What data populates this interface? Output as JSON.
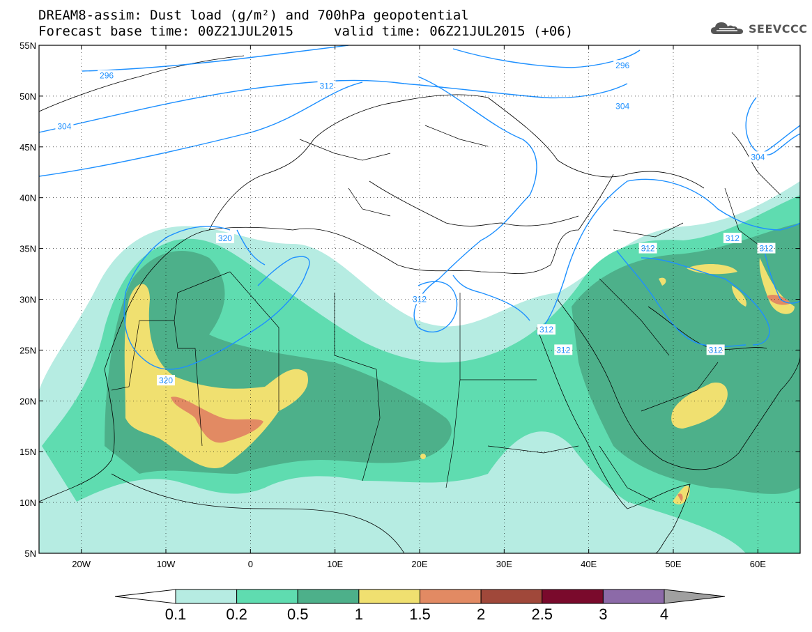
{
  "header": {
    "line1": "DREAM8-assim: Dust load (g/m²) and 700hPa geopotential",
    "line2": "Forecast base time: 00Z21JUL2015",
    "valid": "valid time: 06Z21JUL2015 (+06)",
    "logo_text": "SEEVCCC",
    "logo_icon": "cloud-icon"
  },
  "map": {
    "lon_range": [
      -25,
      65
    ],
    "lat_range": [
      5,
      55
    ],
    "x_ticks": [
      {
        "lon": -20,
        "label": "20W"
      },
      {
        "lon": -10,
        "label": "10W"
      },
      {
        "lon": 0,
        "label": "0"
      },
      {
        "lon": 10,
        "label": "10E"
      },
      {
        "lon": 20,
        "label": "20E"
      },
      {
        "lon": 30,
        "label": "30E"
      },
      {
        "lon": 40,
        "label": "40E"
      },
      {
        "lon": 50,
        "label": "50E"
      },
      {
        "lon": 60,
        "label": "60E"
      }
    ],
    "y_ticks": [
      {
        "lat": 55,
        "label": "55N"
      },
      {
        "lat": 50,
        "label": "50N"
      },
      {
        "lat": 45,
        "label": "45N"
      },
      {
        "lat": 40,
        "label": "40N"
      },
      {
        "lat": 35,
        "label": "35N"
      },
      {
        "lat": 30,
        "label": "30N"
      },
      {
        "lat": 25,
        "label": "25N"
      },
      {
        "lat": 20,
        "label": "20N"
      },
      {
        "lat": 15,
        "label": "15N"
      },
      {
        "lat": 10,
        "label": "10N"
      },
      {
        "lat": 5,
        "label": "5N"
      }
    ],
    "grid": "dotted",
    "dust_colors": {
      "0.1-0.2": "#b6ece2",
      "0.2-0.5": "#5fdcb0",
      "0.5-1": "#4db08a",
      "1-1.5": "#f0e070",
      "1.5-2": "#e28a63",
      "2-2.5": "#a0483a"
    },
    "contour_color": "#1e90ff",
    "contour_labels": [
      {
        "value": "296",
        "lon": -17,
        "lat": 52
      },
      {
        "value": "296",
        "lon": 44,
        "lat": 53
      },
      {
        "value": "304",
        "lon": -22,
        "lat": 47
      },
      {
        "value": "304",
        "lon": 44,
        "lat": 49
      },
      {
        "value": "304",
        "lon": 60,
        "lat": 44
      },
      {
        "value": "312",
        "lon": 9,
        "lat": 51
      },
      {
        "value": "312",
        "lon": 20,
        "lat": 30
      },
      {
        "value": "312",
        "lon": 35,
        "lat": 27
      },
      {
        "value": "312",
        "lon": 37,
        "lat": 25
      },
      {
        "value": "312",
        "lon": 47,
        "lat": 35
      },
      {
        "value": "312",
        "lon": 57,
        "lat": 36
      },
      {
        "value": "312",
        "lon": 61,
        "lat": 35
      },
      {
        "value": "312",
        "lon": 55,
        "lat": 25
      },
      {
        "value": "320",
        "lon": -3,
        "lat": 36
      },
      {
        "value": "320",
        "lon": -10,
        "lat": 22
      }
    ]
  },
  "colorbar": {
    "colors": [
      "#ffffff",
      "#b6ece2",
      "#5fdcb0",
      "#4db08a",
      "#f0e070",
      "#e28a63",
      "#a0483a",
      "#7a0a2c",
      "#8c6aa8",
      "#a0a0a0"
    ],
    "labels": [
      "0.1",
      "0.2",
      "0.5",
      "1",
      "1.5",
      "2",
      "2.5",
      "3",
      "4"
    ]
  }
}
